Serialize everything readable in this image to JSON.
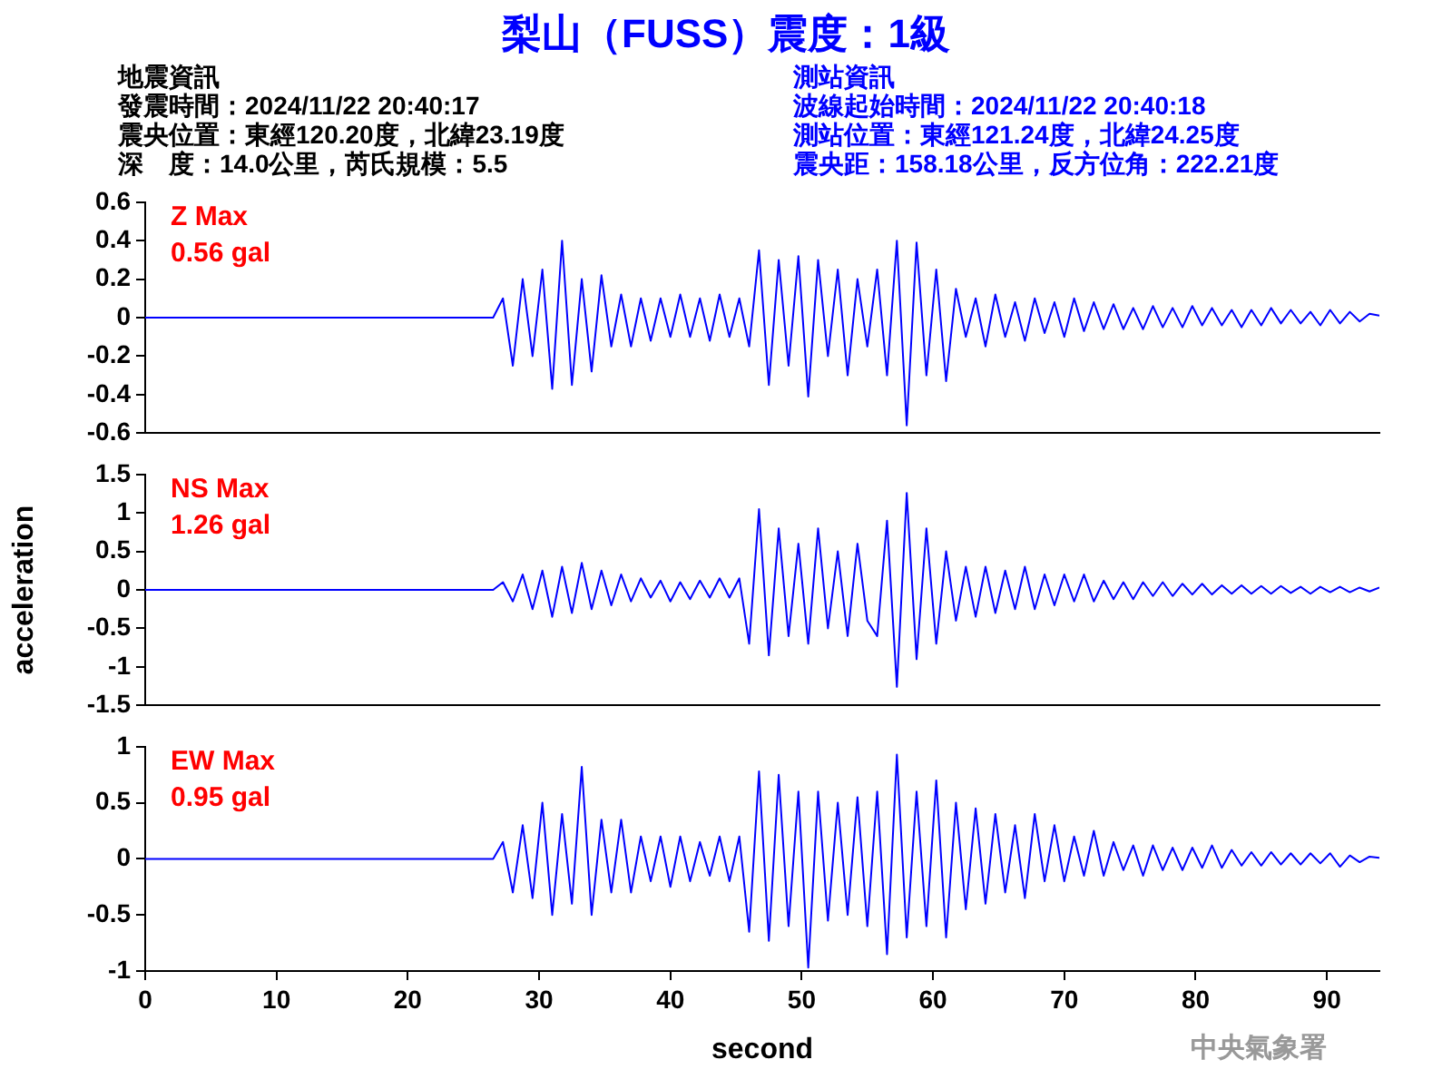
{
  "chart_data": [
    {
      "type": "other",
      "title": "梨山（FUSS）震度：1級",
      "annotations": [
        "地震資訊",
        "發震時間：2024/11/22 20:40:17",
        "震央位置：東經120.20度，北緯23.19度",
        "深　度：14.0公里，芮氏規模：5.5",
        "測站資訊",
        "波線起始時間：2024/11/22 20:40:18",
        "測站位置：東經121.24度，北緯24.25度",
        "震央距：158.18公里，反方位角：222.21度"
      ]
    },
    {
      "type": "line",
      "tick_labels": "y",
      "xlim": [
        0,
        94
      ],
      "ylim": [
        -0.6,
        0.6
      ],
      "yticks": [
        -0.6,
        -0.4,
        -0.2,
        0,
        0.2,
        0.4,
        0.6
      ],
      "marker": "none",
      "annotations": [
        "Z Max",
        "0.56 gal"
      ],
      "x": [
        0,
        26.5,
        27.25,
        28,
        28.75,
        29.5,
        30.25,
        31,
        31.75,
        32.5,
        33.25,
        34,
        34.75,
        35.5,
        36.25,
        37,
        37.75,
        38.5,
        39.25,
        40,
        40.75,
        41.5,
        42.25,
        43,
        43.75,
        44.5,
        45.25,
        46,
        46.75,
        47.5,
        48.25,
        49,
        49.75,
        50.5,
        51.25,
        52,
        52.75,
        53.5,
        54.25,
        55,
        55.75,
        56.5,
        57.25,
        58,
        58.75,
        59.5,
        60.25,
        61,
        61.75,
        62.5,
        63.25,
        64,
        64.75,
        65.5,
        66.25,
        67,
        67.75,
        68.5,
        69.25,
        70,
        70.75,
        71.5,
        72.25,
        73,
        73.75,
        74.5,
        75.25,
        76,
        76.75,
        77.5,
        78.25,
        79,
        79.75,
        80.5,
        81.25,
        82,
        82.75,
        83.5,
        84.25,
        85,
        85.75,
        86.5,
        87.25,
        88,
        88.75,
        89.5,
        90.25,
        91,
        91.75,
        92.5,
        93.25,
        94
      ],
      "series": [
        {
          "color": "#0000ff",
          "values": [
            0,
            0,
            0.1,
            -0.25,
            0.2,
            -0.2,
            0.25,
            -0.37,
            0.4,
            -0.35,
            0.2,
            -0.28,
            0.22,
            -0.15,
            0.12,
            -0.15,
            0.1,
            -0.12,
            0.1,
            -0.1,
            0.12,
            -0.1,
            0.1,
            -0.12,
            0.12,
            -0.1,
            0.1,
            -0.15,
            0.35,
            -0.35,
            0.3,
            -0.25,
            0.32,
            -0.41,
            0.3,
            -0.2,
            0.25,
            -0.3,
            0.2,
            -0.15,
            0.25,
            -0.3,
            0.4,
            -0.56,
            0.39,
            -0.3,
            0.25,
            -0.33,
            0.15,
            -0.1,
            0.1,
            -0.15,
            0.12,
            -0.1,
            0.08,
            -0.12,
            0.1,
            -0.08,
            0.08,
            -0.1,
            0.1,
            -0.07,
            0.08,
            -0.06,
            0.07,
            -0.06,
            0.05,
            -0.06,
            0.06,
            -0.05,
            0.05,
            -0.05,
            0.06,
            -0.04,
            0.05,
            -0.04,
            0.04,
            -0.05,
            0.04,
            -0.04,
            0.05,
            -0.03,
            0.04,
            -0.03,
            0.03,
            -0.04,
            0.04,
            -0.03,
            0.03,
            -0.02,
            0.02,
            0.01
          ]
        }
      ]
    },
    {
      "type": "line",
      "tick_labels": "y",
      "xlim": [
        0,
        94
      ],
      "ylim": [
        -1.5,
        1.5
      ],
      "yticks": [
        -1.5,
        -1,
        -0.5,
        0,
        0.5,
        1,
        1.5
      ],
      "ylabel": "acceleration",
      "marker": "none",
      "annotations": [
        "NS Max",
        "1.26 gal"
      ],
      "x": [
        0,
        26.5,
        27.25,
        28,
        28.75,
        29.5,
        30.25,
        31,
        31.75,
        32.5,
        33.25,
        34,
        34.75,
        35.5,
        36.25,
        37,
        37.75,
        38.5,
        39.25,
        40,
        40.75,
        41.5,
        42.25,
        43,
        43.75,
        44.5,
        45.25,
        46,
        46.75,
        47.5,
        48.25,
        49,
        49.75,
        50.5,
        51.25,
        52,
        52.75,
        53.5,
        54.25,
        55,
        55.75,
        56.5,
        57.25,
        58,
        58.75,
        59.5,
        60.25,
        61,
        61.75,
        62.5,
        63.25,
        64,
        64.75,
        65.5,
        66.25,
        67,
        67.75,
        68.5,
        69.25,
        70,
        70.75,
        71.5,
        72.25,
        73,
        73.75,
        74.5,
        75.25,
        76,
        76.75,
        77.5,
        78.25,
        79,
        79.75,
        80.5,
        81.25,
        82,
        82.75,
        83.5,
        84.25,
        85,
        85.75,
        86.5,
        87.25,
        88,
        88.75,
        89.5,
        90.25,
        91,
        91.75,
        92.5,
        93.25,
        94
      ],
      "series": [
        {
          "color": "#0000ff",
          "values": [
            0,
            0,
            0.1,
            -0.15,
            0.2,
            -0.25,
            0.25,
            -0.35,
            0.3,
            -0.3,
            0.35,
            -0.25,
            0.25,
            -0.2,
            0.2,
            -0.15,
            0.15,
            -0.1,
            0.12,
            -0.15,
            0.1,
            -0.12,
            0.12,
            -0.1,
            0.15,
            -0.1,
            0.15,
            -0.7,
            1.05,
            -0.85,
            0.8,
            -0.6,
            0.6,
            -0.7,
            0.8,
            -0.5,
            0.5,
            -0.6,
            0.6,
            -0.4,
            -0.6,
            0.9,
            -1.26,
            1.26,
            -0.9,
            0.8,
            -0.7,
            0.5,
            -0.4,
            0.3,
            -0.35,
            0.3,
            -0.3,
            0.25,
            -0.25,
            0.3,
            -0.25,
            0.2,
            -0.2,
            0.2,
            -0.15,
            0.2,
            -0.15,
            0.12,
            -0.12,
            0.1,
            -0.12,
            0.1,
            -0.08,
            0.1,
            -0.08,
            0.08,
            -0.06,
            0.08,
            -0.06,
            0.06,
            -0.05,
            0.06,
            -0.05,
            0.05,
            -0.05,
            0.05,
            -0.04,
            0.04,
            -0.05,
            0.04,
            -0.03,
            0.04,
            -0.03,
            0.03,
            -0.02,
            0.03
          ]
        }
      ]
    },
    {
      "type": "line",
      "xlim": [
        0,
        94
      ],
      "xticks": [
        0,
        10,
        20,
        30,
        40,
        50,
        60,
        70,
        80,
        90
      ],
      "ylim": [
        -1,
        1
      ],
      "yticks": [
        -1,
        -0.5,
        0,
        0.5,
        1
      ],
      "xlabel": "second",
      "marker": "none",
      "annotations": [
        "EW Max",
        "0.95 gal",
        "中央氣象署"
      ],
      "x": [
        0,
        26.5,
        27.25,
        28,
        28.75,
        29.5,
        30.25,
        31,
        31.75,
        32.5,
        33.25,
        34,
        34.75,
        35.5,
        36.25,
        37,
        37.75,
        38.5,
        39.25,
        40,
        40.75,
        41.5,
        42.25,
        43,
        43.75,
        44.5,
        45.25,
        46,
        46.75,
        47.5,
        48.25,
        49,
        49.75,
        50.5,
        51.25,
        52,
        52.75,
        53.5,
        54.25,
        55,
        55.75,
        56.5,
        57.25,
        58,
        58.75,
        59.5,
        60.25,
        61,
        61.75,
        62.5,
        63.25,
        64,
        64.75,
        65.5,
        66.25,
        67,
        67.75,
        68.5,
        69.25,
        70,
        70.75,
        71.5,
        72.25,
        73,
        73.75,
        74.5,
        75.25,
        76,
        76.75,
        77.5,
        78.25,
        79,
        79.75,
        80.5,
        81.25,
        82,
        82.75,
        83.5,
        84.25,
        85,
        85.75,
        86.5,
        87.25,
        88,
        88.75,
        89.5,
        90.25,
        91,
        91.75,
        92.5,
        93.25,
        94
      ],
      "series": [
        {
          "color": "#0000ff",
          "values": [
            0,
            0,
            0.15,
            -0.3,
            0.3,
            -0.35,
            0.5,
            -0.5,
            0.4,
            -0.4,
            0.82,
            -0.5,
            0.35,
            -0.3,
            0.35,
            -0.3,
            0.2,
            -0.2,
            0.2,
            -0.25,
            0.2,
            -0.2,
            0.15,
            -0.15,
            0.2,
            -0.2,
            0.2,
            -0.65,
            0.78,
            -0.73,
            0.75,
            -0.6,
            0.6,
            -0.97,
            0.6,
            -0.55,
            0.5,
            -0.5,
            0.55,
            -0.6,
            0.6,
            -0.85,
            0.93,
            -0.7,
            0.6,
            -0.6,
            0.7,
            -0.7,
            0.5,
            -0.45,
            0.45,
            -0.4,
            0.4,
            -0.3,
            0.3,
            -0.35,
            0.4,
            -0.2,
            0.3,
            -0.2,
            0.2,
            -0.15,
            0.25,
            -0.15,
            0.15,
            -0.1,
            0.12,
            -0.15,
            0.12,
            -0.1,
            0.1,
            -0.1,
            0.1,
            -0.08,
            0.12,
            -0.08,
            0.08,
            -0.06,
            0.06,
            -0.06,
            0.06,
            -0.05,
            0.05,
            -0.05,
            0.05,
            -0.04,
            0.05,
            -0.07,
            0.03,
            -0.03,
            0.02,
            0.01
          ]
        }
      ]
    }
  ]
}
